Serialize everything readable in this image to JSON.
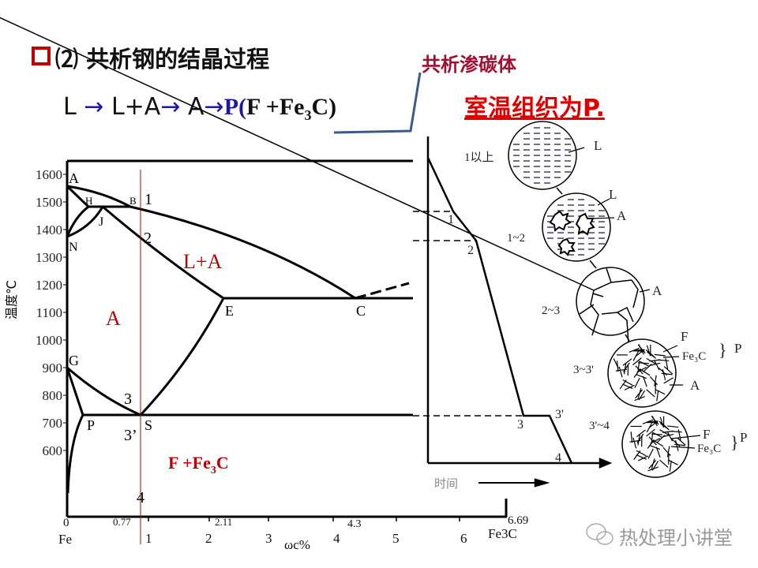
{
  "title": {
    "marker_icon": "red-square-bullet",
    "text": "⑵ 共析钢的结晶过程"
  },
  "formula": {
    "steps": [
      "L",
      "L+A",
      "A"
    ],
    "arrow": "→",
    "result_p": "P(",
    "result_rest": "F +Fe",
    "sub": "3",
    "tail": "C)"
  },
  "annotation": {
    "text": "共析渗碳体",
    "color": "#a01030"
  },
  "room_temp": {
    "text": "室温组织为P.",
    "color": "#e00000"
  },
  "phase_diagram": {
    "y_axis": {
      "label": "温度℃",
      "ticks": [
        "1600",
        "1500",
        "1400",
        "1300",
        "1200",
        "1100",
        "1000",
        "900",
        "800",
        "700",
        "600"
      ]
    },
    "x_axis": {
      "label": "ωc%",
      "ticks": [
        "1",
        "2",
        "3",
        "4",
        "5",
        "6"
      ],
      "start_value": "0",
      "start_label": "Fe",
      "end_value": "6.69",
      "end_label": "Fe3C",
      "marks": [
        "0.77",
        "2.11",
        "4.3"
      ]
    },
    "points": [
      "A",
      "H",
      "J",
      "B",
      "N",
      "E",
      "C",
      "G",
      "P",
      "S"
    ],
    "cooling_points": [
      "1",
      "2",
      "3",
      "3’",
      "4"
    ],
    "regions": {
      "austenite": "A",
      "liquid_austenite": "L+A",
      "pearlite": "F +Fe",
      "pearlite_sub": "3",
      "pearlite_tail": "C"
    },
    "region_color": "#c00000",
    "alloy_line_color": "#c00000"
  },
  "cooling_curve": {
    "x_label": "时间",
    "points": [
      "1",
      "2",
      "3",
      "3'",
      "4"
    ],
    "stages": [
      {
        "label": "1以上",
        "phases": [
          "L"
        ]
      },
      {
        "label": "1~2",
        "phases": [
          "L",
          "A"
        ]
      },
      {
        "label": "2~3",
        "phases": [
          "A"
        ]
      },
      {
        "label": "3~3'",
        "phases": [
          "F",
          "Fe₃C",
          "A"
        ],
        "group": "P"
      },
      {
        "label": "3'~4",
        "phases": [
          "F",
          "Fe₃C"
        ],
        "group": "P"
      }
    ]
  },
  "watermark": {
    "icon": "wechat-icon",
    "text": "热处理小讲堂"
  }
}
